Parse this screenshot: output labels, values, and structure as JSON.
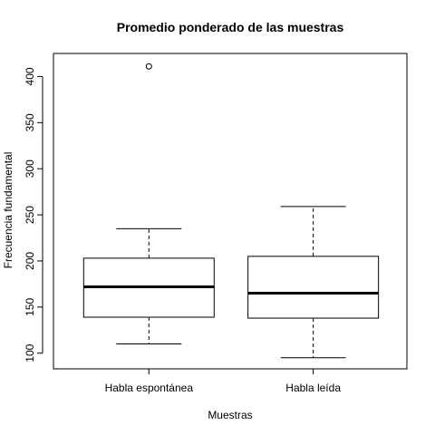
{
  "chart_data": {
    "type": "boxplot",
    "title": "Promedio ponderado de las muestras",
    "xlabel": "Muestras",
    "ylabel": "Frecuencia fundamental",
    "ylim": [
      83,
      425
    ],
    "yticks": [
      100,
      150,
      200,
      250,
      300,
      350,
      400
    ],
    "grid": false,
    "categories": [
      "Habla espontánea",
      "Habla leída"
    ],
    "boxes": [
      {
        "whisker_low": 110,
        "q1": 139,
        "median": 172,
        "q3": 203,
        "whisker_high": 235,
        "outliers": [
          411
        ]
      },
      {
        "whisker_low": 95,
        "q1": 138,
        "median": 165,
        "q3": 205,
        "whisker_high": 259,
        "outliers": []
      }
    ]
  }
}
